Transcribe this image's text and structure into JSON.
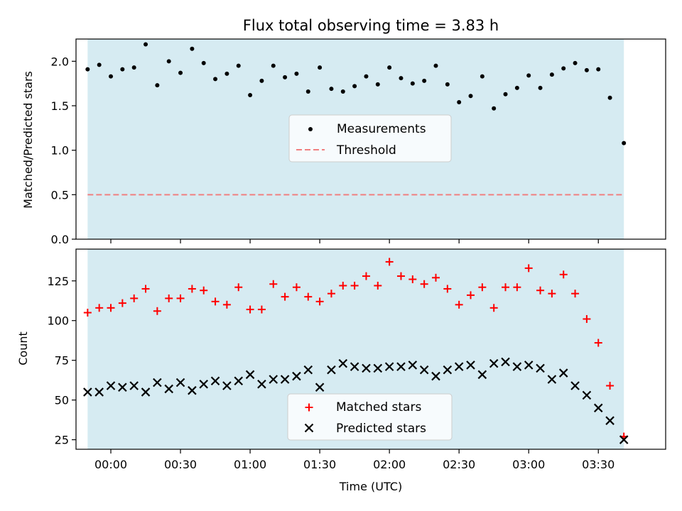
{
  "figure": {
    "title": "Flux total observing time = 3.83 h",
    "shade_color": "#add8e6",
    "shade_range": [
      "23:50",
      "03:41"
    ]
  },
  "chart_data": [
    {
      "type": "scatter",
      "ylabel": "Matched/Predicted stars",
      "ylim": [
        0,
        2.25
      ],
      "yticks": [
        0.0,
        0.5,
        1.0,
        1.5,
        2.0
      ],
      "ytick_labels": [
        "0.0",
        "0.5",
        "1.0",
        "1.5",
        "2.0"
      ],
      "legend_position": "center",
      "threshold": {
        "name": "Threshold",
        "value": 0.5,
        "color": "#f08080",
        "style": "dashed"
      },
      "series": [
        {
          "name": "Measurements",
          "color": "#000000",
          "marker": "dot",
          "x": [
            "23:50",
            "23:55",
            "00:00",
            "00:05",
            "00:10",
            "00:15",
            "00:20",
            "00:25",
            "00:30",
            "00:35",
            "00:40",
            "00:45",
            "00:50",
            "00:55",
            "01:00",
            "01:05",
            "01:10",
            "01:15",
            "01:20",
            "01:25",
            "01:30",
            "01:35",
            "01:40",
            "01:45",
            "01:50",
            "01:55",
            "02:00",
            "02:05",
            "02:10",
            "02:15",
            "02:20",
            "02:25",
            "02:30",
            "02:35",
            "02:40",
            "02:45",
            "02:50",
            "02:55",
            "03:00",
            "03:05",
            "03:10",
            "03:15",
            "03:20",
            "03:25",
            "03:30",
            "03:35",
            "03:41"
          ],
          "y": [
            1.91,
            1.96,
            1.83,
            1.91,
            1.93,
            2.19,
            1.73,
            2.0,
            1.87,
            2.14,
            1.98,
            1.8,
            1.86,
            1.95,
            1.62,
            1.78,
            1.95,
            1.82,
            1.86,
            1.66,
            1.93,
            1.69,
            1.66,
            1.72,
            1.83,
            1.74,
            1.93,
            1.81,
            1.75,
            1.78,
            1.95,
            1.74,
            1.54,
            1.61,
            1.83,
            1.47,
            1.63,
            1.7,
            1.84,
            1.7,
            1.85,
            1.92,
            1.98,
            1.9,
            1.91,
            1.59,
            1.08
          ]
        }
      ]
    },
    {
      "type": "scatter",
      "xlabel": "Time (UTC)",
      "ylabel": "Count",
      "ylim": [
        19,
        145
      ],
      "yticks": [
        25,
        50,
        75,
        100,
        125
      ],
      "ytick_labels": [
        "25",
        "50",
        "75",
        "100",
        "125"
      ],
      "xticks": [
        "00:00",
        "00:30",
        "01:00",
        "01:30",
        "02:00",
        "02:30",
        "03:00",
        "03:30"
      ],
      "xlim": [
        "23:45",
        "03:59"
      ],
      "legend_position": "bottom-center",
      "series": [
        {
          "name": "Matched stars",
          "color": "#ff0000",
          "marker": "plus",
          "x": [
            "23:50",
            "23:55",
            "00:00",
            "00:05",
            "00:10",
            "00:15",
            "00:20",
            "00:25",
            "00:30",
            "00:35",
            "00:40",
            "00:45",
            "00:50",
            "00:55",
            "01:00",
            "01:05",
            "01:10",
            "01:15",
            "01:20",
            "01:25",
            "01:30",
            "01:35",
            "01:40",
            "01:45",
            "01:50",
            "01:55",
            "02:00",
            "02:05",
            "02:10",
            "02:15",
            "02:20",
            "02:25",
            "02:30",
            "02:35",
            "02:40",
            "02:45",
            "02:50",
            "02:55",
            "03:00",
            "03:05",
            "03:10",
            "03:15",
            "03:20",
            "03:25",
            "03:30",
            "03:35",
            "03:41"
          ],
          "y": [
            105,
            108,
            108,
            111,
            114,
            120,
            106,
            114,
            114,
            120,
            119,
            112,
            110,
            121,
            107,
            107,
            123,
            115,
            121,
            115,
            112,
            117,
            122,
            122,
            128,
            122,
            137,
            128,
            126,
            123,
            127,
            120,
            110,
            116,
            121,
            108,
            121,
            121,
            133,
            119,
            117,
            129,
            117,
            101,
            86,
            59,
            27
          ]
        },
        {
          "name": "Predicted stars",
          "color": "#000000",
          "marker": "x",
          "x": [
            "23:50",
            "23:55",
            "00:00",
            "00:05",
            "00:10",
            "00:15",
            "00:20",
            "00:25",
            "00:30",
            "00:35",
            "00:40",
            "00:45",
            "00:50",
            "00:55",
            "01:00",
            "01:05",
            "01:10",
            "01:15",
            "01:20",
            "01:25",
            "01:30",
            "01:35",
            "01:40",
            "01:45",
            "01:50",
            "01:55",
            "02:00",
            "02:05",
            "02:10",
            "02:15",
            "02:20",
            "02:25",
            "02:30",
            "02:35",
            "02:40",
            "02:45",
            "02:50",
            "02:55",
            "03:00",
            "03:05",
            "03:10",
            "03:15",
            "03:20",
            "03:25",
            "03:30",
            "03:35",
            "03:41"
          ],
          "y": [
            55,
            55,
            59,
            58,
            59,
            55,
            61,
            57,
            61,
            56,
            60,
            62,
            59,
            62,
            66,
            60,
            63,
            63,
            65,
            69,
            58,
            69,
            73,
            71,
            70,
            70,
            71,
            71,
            72,
            69,
            65,
            69,
            71,
            72,
            66,
            73,
            74,
            71,
            72,
            70,
            63,
            67,
            59,
            53,
            45,
            37,
            25
          ]
        }
      ]
    }
  ]
}
